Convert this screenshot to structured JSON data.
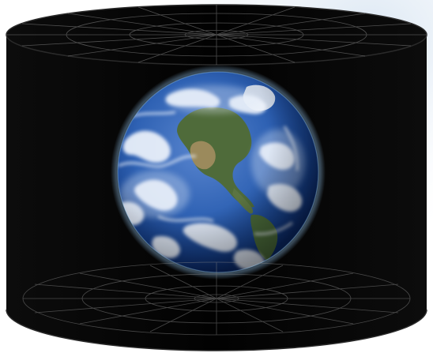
{
  "scene": {
    "subject": "earth-globe",
    "container": "cylinder",
    "colors": {
      "background": "#ffffff",
      "backdrop_glow": "#dbe7f3",
      "cylinder_body": "#050505",
      "cylinder_edge": "#2a2a2a",
      "grid_line": "#8a8a8a",
      "ocean_dark": "#0b2a6b",
      "ocean_mid": "#2f62b4",
      "ocean_light": "#8fb2e6",
      "land_green": "#4f6b3a",
      "land_tan": "#9b8a5c",
      "cloud": "#eef3fb",
      "atmosphere": "#9fd3ff"
    }
  }
}
